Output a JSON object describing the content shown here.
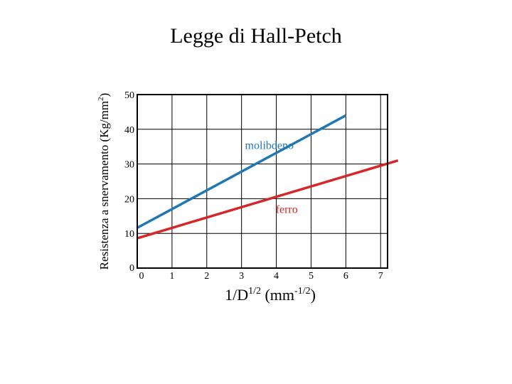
{
  "chart_data": {
    "type": "line",
    "title": "Legge di Hall-Petch",
    "xlabel": {
      "base": "1/D",
      "sup": "1/2",
      "unit_open": " (mm",
      "unit_sup": "-1/2",
      "unit_close": ")"
    },
    "ylabel": {
      "base": "Resistenza a snervamento (Kg/mm",
      "sup": "2",
      "close": ")"
    },
    "xlim": [
      0,
      7.2
    ],
    "ylim": [
      0,
      50
    ],
    "x_ticks": [
      0,
      1,
      2,
      3,
      4,
      5,
      6,
      7
    ],
    "y_ticks": [
      0,
      10,
      20,
      30,
      40,
      50
    ],
    "grid": true,
    "series": [
      {
        "name": "molibdeno",
        "color": "#1f77b4",
        "x": [
          0,
          6.0
        ],
        "y": [
          11.6,
          44.0
        ]
      },
      {
        "name": "ferro",
        "color": "#d62728",
        "x": [
          0,
          7.5
        ],
        "y": [
          8.6,
          31.0
        ]
      }
    ]
  }
}
